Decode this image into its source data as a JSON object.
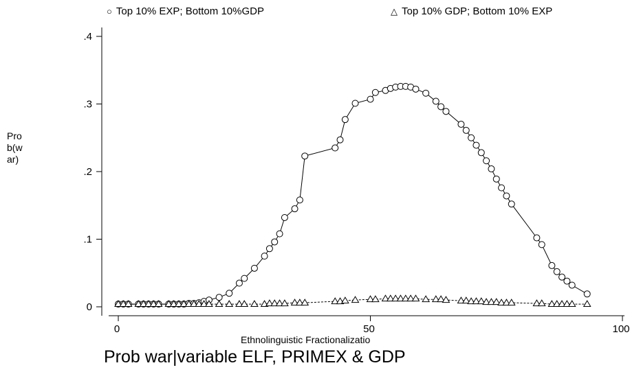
{
  "chart_data": {
    "type": "line",
    "title": "Prob war|variable ELF, PRIMEX & GDP",
    "xlabel": "Ethnolinguistic Fractionalizatio",
    "ylabel": "Prob(war)",
    "xlim": [
      0,
      100
    ],
    "ylim": [
      0,
      0.4
    ],
    "xticks": [
      0,
      50,
      100
    ],
    "xtick_labels": [
      "0",
      "50",
      "100"
    ],
    "yticks": [
      0,
      0.1,
      0.2,
      0.3,
      0.4
    ],
    "ytick_labels": [
      "0",
      ".1",
      ".2",
      ".3",
      ".4"
    ],
    "grid": false,
    "legend": "top",
    "series": [
      {
        "name": "Top 10% EXP; Bottom 10%GDP",
        "marker": "circle",
        "x": [
          0,
          1,
          2,
          4,
          5,
          6,
          7,
          8,
          10,
          11,
          12,
          13,
          14,
          15,
          16,
          17,
          18,
          20,
          22,
          24,
          25,
          27,
          29,
          30,
          31,
          32,
          33,
          35,
          36,
          37,
          43,
          44,
          45,
          47,
          50,
          51,
          53,
          54,
          55,
          56,
          57,
          58,
          59,
          61,
          63,
          64,
          65,
          68,
          69,
          70,
          71,
          72,
          73,
          74,
          75,
          76,
          77,
          78,
          83,
          84,
          86,
          87,
          88,
          89,
          90,
          93
        ],
        "y": [
          0.004,
          0.004,
          0.004,
          0.004,
          0.004,
          0.004,
          0.004,
          0.004,
          0.004,
          0.004,
          0.004,
          0.004,
          0.005,
          0.005,
          0.006,
          0.008,
          0.01,
          0.014,
          0.02,
          0.035,
          0.042,
          0.057,
          0.075,
          0.086,
          0.096,
          0.108,
          0.132,
          0.145,
          0.158,
          0.223,
          0.235,
          0.247,
          0.277,
          0.301,
          0.307,
          0.317,
          0.32,
          0.323,
          0.325,
          0.326,
          0.326,
          0.325,
          0.322,
          0.316,
          0.304,
          0.296,
          0.289,
          0.27,
          0.261,
          0.25,
          0.239,
          0.228,
          0.216,
          0.204,
          0.189,
          0.176,
          0.164,
          0.152,
          0.102,
          0.092,
          0.061,
          0.052,
          0.044,
          0.038,
          0.032,
          0.019
        ]
      },
      {
        "name": "Top 10% GDP; Bottom 10% EXP",
        "marker": "triangle",
        "x": [
          0,
          1,
          2,
          4,
          5,
          6,
          7,
          8,
          10,
          11,
          12,
          13,
          14,
          15,
          16,
          17,
          18,
          20,
          22,
          24,
          25,
          27,
          29,
          30,
          31,
          32,
          33,
          35,
          36,
          37,
          43,
          44,
          45,
          47,
          50,
          51,
          53,
          54,
          55,
          56,
          57,
          58,
          59,
          61,
          63,
          64,
          65,
          68,
          69,
          70,
          71,
          72,
          73,
          74,
          75,
          76,
          77,
          78,
          83,
          84,
          86,
          87,
          88,
          89,
          90,
          93
        ],
        "y": [
          0.004,
          0.004,
          0.004,
          0.004,
          0.004,
          0.004,
          0.004,
          0.004,
          0.004,
          0.004,
          0.004,
          0.004,
          0.004,
          0.004,
          0.004,
          0.004,
          0.004,
          0.004,
          0.004,
          0.004,
          0.004,
          0.004,
          0.004,
          0.005,
          0.005,
          0.005,
          0.005,
          0.006,
          0.006,
          0.006,
          0.008,
          0.008,
          0.009,
          0.01,
          0.011,
          0.011,
          0.012,
          0.012,
          0.012,
          0.012,
          0.012,
          0.012,
          0.012,
          0.011,
          0.011,
          0.011,
          0.01,
          0.009,
          0.009,
          0.008,
          0.008,
          0.008,
          0.007,
          0.007,
          0.007,
          0.006,
          0.006,
          0.006,
          0.005,
          0.005,
          0.004,
          0.004,
          0.004,
          0.004,
          0.004,
          0.004
        ]
      }
    ]
  }
}
